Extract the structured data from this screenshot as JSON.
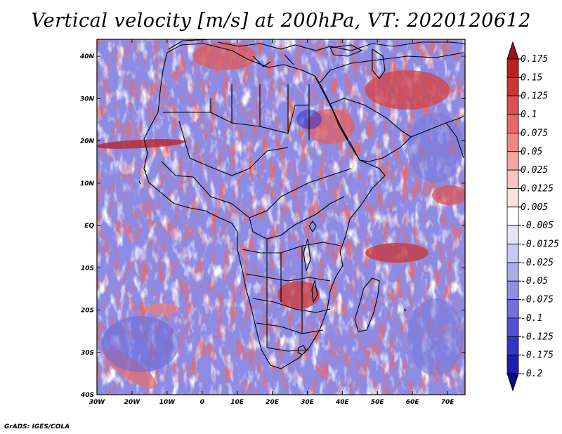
{
  "title": "Vertical velocity [m/s] at 200hPa, VT: 2020120612",
  "credit": "GrADS: IGES/COLA",
  "axes": {
    "lon_ticks": [
      "30W",
      "20W",
      "10W",
      "0",
      "10E",
      "20E",
      "30E",
      "40E",
      "50E",
      "60E",
      "70E"
    ],
    "lat_ticks": [
      "40N",
      "30N",
      "20N",
      "10N",
      "EQ",
      "10S",
      "20S",
      "30S",
      "40S"
    ],
    "lon_range": [
      -30,
      75
    ],
    "lat_range": [
      -40,
      44
    ]
  },
  "colorbar": {
    "labels": [
      "0.175",
      "0.15",
      "0.125",
      "0.1",
      "0.075",
      "0.05",
      "0.025",
      "0.0125",
      "0.005",
      "-0.005",
      "-0.0125",
      "-0.025",
      "-0.05",
      "-0.075",
      "-0.1",
      "-0.125",
      "-0.175",
      "-0.2"
    ],
    "colors": [
      "#a01010",
      "#b82020",
      "#cc3535",
      "#dc5050",
      "#e86868",
      "#f08888",
      "#f5a5a5",
      "#f8c3c3",
      "#fbe0e0",
      "#ffffff",
      "#e3e3fb",
      "#c8c8f6",
      "#ababf0",
      "#8f8fe8",
      "#7070de",
      "#5252d2",
      "#3535c4",
      "#1c1cae",
      "#0a0a8c"
    ]
  }
}
